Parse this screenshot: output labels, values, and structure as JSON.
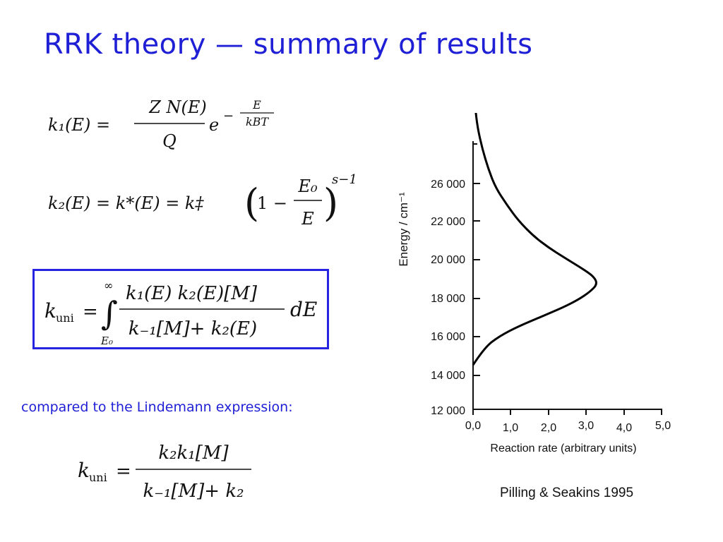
{
  "slide": {
    "title": "RRK theory — summary of results",
    "note": "compared to the Lindemann expression:",
    "credit": "Pilling & Seakins 1995"
  },
  "equations": {
    "k1": {
      "lhs": "k₁(E) =",
      "num": "Z N(E)",
      "den": "Q",
      "base": "e",
      "exp_sign": "−",
      "exp_num": "E",
      "exp_den": "kBT"
    },
    "k2": {
      "lhs": "k₂(E) = k*(E) = k‡",
      "one": "1 −",
      "frac_num": "E₀",
      "frac_den": "E",
      "power": "s−1"
    },
    "kuni_rrk": {
      "lhs": "k",
      "lhs_sub": "uni",
      "eq": "=",
      "upper": "∞",
      "lower": "E₀",
      "num": "k₁(E) k₂(E)[M]",
      "den": "k₋₁[M]+ k₂(E)",
      "diff": "dE"
    },
    "kuni_lind": {
      "lhs": "k",
      "lhs_sub": "uni",
      "eq": "=",
      "num": "k₂k₁[M]",
      "den": "k₋₁[M]+ k₂"
    }
  },
  "chart_data": {
    "type": "line",
    "xlabel": "Reaction rate (arbitrary units)",
    "ylabel": "Energy / cm⁻¹",
    "x_ticks": [
      "0,0",
      "1,0",
      "2,0",
      "3,0",
      "4,0",
      "5,0"
    ],
    "y_ticks": [
      "12 000",
      "14 000",
      "16 000",
      "18 000",
      "20 000",
      "22 000",
      "26 000"
    ],
    "series": [
      {
        "color": "#000000",
        "points": [
          [
            0.0,
            14.3
          ],
          [
            0.3,
            15.2
          ],
          [
            0.7,
            15.8
          ],
          [
            1.2,
            16.3
          ],
          [
            1.8,
            16.8
          ],
          [
            2.4,
            17.3
          ],
          [
            2.8,
            17.7
          ],
          [
            3.1,
            18.1
          ],
          [
            3.3,
            18.5
          ],
          [
            3.2,
            18.9
          ],
          [
            2.9,
            19.3
          ],
          [
            2.4,
            19.9
          ],
          [
            2.0,
            20.4
          ],
          [
            1.6,
            21.0
          ],
          [
            1.2,
            21.8
          ],
          [
            0.9,
            22.6
          ],
          [
            0.6,
            23.5
          ],
          [
            0.4,
            24.5
          ],
          [
            0.25,
            25.5
          ],
          [
            0.12,
            26.6
          ],
          [
            0.05,
            27.8
          ],
          [
            0.0,
            29.6
          ]
        ]
      }
    ]
  }
}
